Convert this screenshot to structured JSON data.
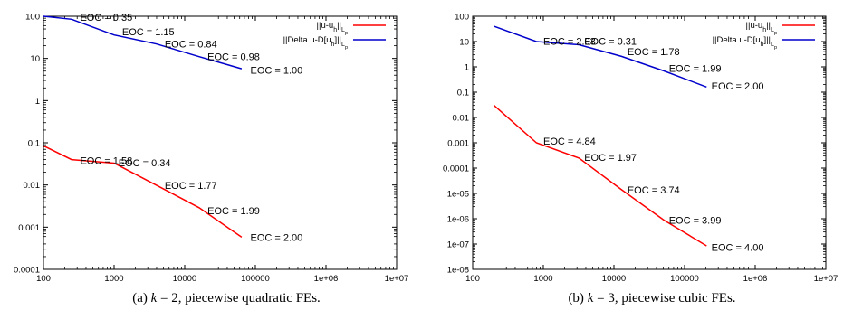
{
  "chart_data": [
    {
      "type": "line",
      "caption": {
        "label": "(a)",
        "k": "k",
        "eq": "=",
        "value": "2,",
        "text": "piecewise quadratic FEs."
      },
      "x_scale": "log",
      "y_scale": "log",
      "xlim": [
        100,
        10000000
      ],
      "ylim": [
        0.0001,
        100
      ],
      "x_ticks": [
        "100",
        "1000",
        "10000",
        "100000",
        "1e+06",
        "1e+07"
      ],
      "y_ticks": [
        "0.0001",
        "0.001",
        "0.01",
        "0.1",
        "1",
        "10",
        "100"
      ],
      "legend_position": "top-right",
      "series": [
        {
          "name_parts": [
            "||u-u",
            "h",
            "||",
            "L",
            "p"
          ],
          "color": "#ff0000",
          "x": [
            100,
            250,
            1000,
            4000,
            16000,
            64000
          ],
          "y": [
            0.085,
            0.04,
            0.033,
            0.0098,
            0.0029,
            0.00058
          ]
        },
        {
          "name_parts": [
            "||Delta u-D[u",
            "h",
            "]||",
            "L",
            "p"
          ],
          "color": "#0000cc",
          "x": [
            100,
            250,
            1000,
            4000,
            16000,
            64000
          ],
          "y": [
            100,
            85,
            36,
            22,
            11,
            5.7
          ]
        }
      ],
      "annotations": [
        {
          "text": "EOC = 0.35",
          "x": 330,
          "y": 95
        },
        {
          "text": "EOC = 1.15",
          "x": 1300,
          "y": 43
        },
        {
          "text": "EOC = 0.84",
          "x": 5200,
          "y": 22
        },
        {
          "text": "EOC = 0.98",
          "x": 21000,
          "y": 11
        },
        {
          "text": "EOC = 1.00",
          "x": 85000,
          "y": 5.3
        },
        {
          "text": "EOC = 1.58",
          "x": 330,
          "y": 0.038
        },
        {
          "text": "EOC = 0.34",
          "x": 1150,
          "y": 0.034
        },
        {
          "text": "EOC = 1.77",
          "x": 5200,
          "y": 0.0098
        },
        {
          "text": "EOC = 1.99",
          "x": 21000,
          "y": 0.0025
        },
        {
          "text": "EOC = 2.00",
          "x": 85000,
          "y": 0.00057
        }
      ]
    },
    {
      "type": "line",
      "caption": {
        "label": "(b)",
        "k": "k",
        "eq": "=",
        "value": "3,",
        "text": "piecewise cubic FEs."
      },
      "x_scale": "log",
      "y_scale": "log",
      "xlim": [
        100,
        10000000
      ],
      "ylim": [
        1e-08,
        100
      ],
      "x_ticks": [
        "100",
        "1000",
        "10000",
        "100000",
        "1e+06",
        "1e+07"
      ],
      "y_ticks": [
        "1e-08",
        "1e-07",
        "1e-06",
        "1e-05",
        "0.0001",
        "0.001",
        "0.01",
        "0.1",
        "1",
        "10",
        "100"
      ],
      "legend_position": "top-right",
      "series": [
        {
          "name_parts": [
            "||u-u",
            "h",
            "||",
            "L",
            "p"
          ],
          "color": "#ff0000",
          "x": [
            200,
            800,
            3200,
            12800,
            51200,
            204800
          ],
          "y": [
            0.03,
            0.001,
            0.00025,
            1.4e-05,
            8.8e-07,
            8.5e-08
          ]
        },
        {
          "name_parts": [
            "||Delta u-D[u",
            "h",
            "]||",
            "L",
            "p"
          ],
          "color": "#0000cc",
          "x": [
            200,
            800,
            3200,
            12800,
            51200,
            204800
          ],
          "y": [
            40,
            10,
            7.5,
            2.6,
            0.69,
            0.16
          ]
        }
      ],
      "annotations": [
        {
          "text": "EOC = 2.03",
          "x": 1000,
          "y": 10.5
        },
        {
          "text": "EOC = 0.31",
          "x": 3800,
          "y": 10.5
        },
        {
          "text": "EOC = 1.78",
          "x": 15500,
          "y": 4.0
        },
        {
          "text": "EOC = 1.99",
          "x": 60000,
          "y": 0.88
        },
        {
          "text": "EOC = 2.00",
          "x": 240000,
          "y": 0.18
        },
        {
          "text": "EOC = 4.84",
          "x": 1000,
          "y": 0.0012
        },
        {
          "text": "EOC = 1.97",
          "x": 3800,
          "y": 0.00027
        },
        {
          "text": "EOC = 3.74",
          "x": 15500,
          "y": 1.4e-05
        },
        {
          "text": "EOC = 3.99",
          "x": 60000,
          "y": 8.8e-07
        },
        {
          "text": "EOC = 4.00",
          "x": 240000,
          "y": 7.5e-08
        }
      ]
    }
  ]
}
